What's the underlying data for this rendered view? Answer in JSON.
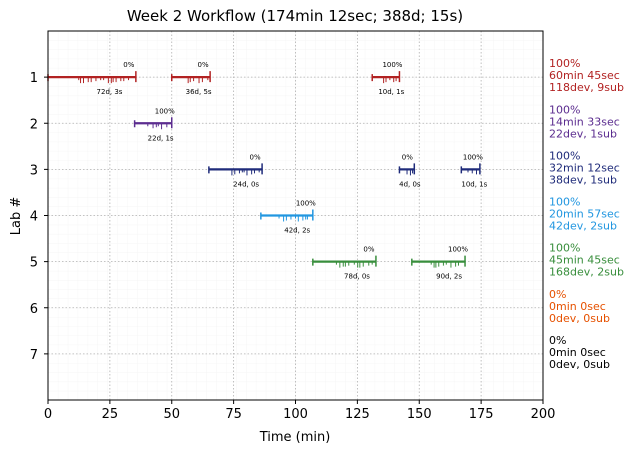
{
  "chart_data": {
    "type": "timeline",
    "title": "Week 2 Workflow (174min 12sec; 388d; 15s)",
    "xlabel": "Time (min)",
    "ylabel": "Lab #",
    "xlim": [
      0,
      200
    ],
    "ylim": [
      8,
      0
    ],
    "xticks": [
      "0",
      "25",
      "50",
      "75",
      "100",
      "125",
      "150",
      "175",
      "200"
    ],
    "yticks": [
      "1",
      "2",
      "3",
      "4",
      "5",
      "6",
      "7"
    ],
    "grid": true,
    "labs": [
      {
        "lab": 1,
        "color": "#b22222",
        "summary": [
          "100%",
          "60min 45sec",
          "118dev, 9sub"
        ]
      },
      {
        "lab": 2,
        "color": "#5b2c8f",
        "summary": [
          "100%",
          "14min 33sec",
          "22dev, 1sub"
        ]
      },
      {
        "lab": 3,
        "color": "#1f2b7a",
        "summary": [
          "100%",
          "32min 12sec",
          "38dev, 1sub"
        ]
      },
      {
        "lab": 4,
        "color": "#2196e0",
        "summary": [
          "100%",
          "20min 57sec",
          "42dev, 2sub"
        ]
      },
      {
        "lab": 5,
        "color": "#388e3c",
        "summary": [
          "100%",
          "45min 45sec",
          "168dev, 2sub"
        ]
      },
      {
        "lab": 6,
        "color": "#e65100",
        "summary": [
          "0%",
          "0min 0sec",
          "0dev, 0sub"
        ]
      },
      {
        "lab": 7,
        "color": "#000000",
        "summary": [
          "0%",
          "0min 0sec",
          "0dev, 0sub"
        ]
      }
    ],
    "sessions": [
      {
        "lab": 1,
        "start": 0,
        "end": 35.5,
        "pct_label": "0%",
        "count_label": "72d, 3s"
      },
      {
        "lab": 1,
        "start": 50,
        "end": 65.5,
        "pct_label": "0%",
        "count_label": "36d, 5s"
      },
      {
        "lab": 1,
        "start": 131,
        "end": 142,
        "pct_label": "100%",
        "count_label": "10d, 1s"
      },
      {
        "lab": 2,
        "start": 35,
        "end": 50,
        "pct_label": "100%",
        "count_label": "22d, 1s"
      },
      {
        "lab": 3,
        "start": 65,
        "end": 86.5,
        "pct_label": "0%",
        "count_label": "24d, 0s"
      },
      {
        "lab": 3,
        "start": 142,
        "end": 148,
        "pct_label": "0%",
        "count_label": "4d, 0s"
      },
      {
        "lab": 3,
        "start": 167,
        "end": 174.5,
        "pct_label": "100%",
        "count_label": "10d, 1s"
      },
      {
        "lab": 4,
        "start": 86,
        "end": 107,
        "pct_label": "100%",
        "count_label": "42d, 2s"
      },
      {
        "lab": 5,
        "start": 107,
        "end": 132.5,
        "pct_label": "0%",
        "count_label": "78d, 0s"
      },
      {
        "lab": 5,
        "start": 147,
        "end": 168.5,
        "pct_label": "100%",
        "count_label": "90d, 2s"
      }
    ]
  }
}
